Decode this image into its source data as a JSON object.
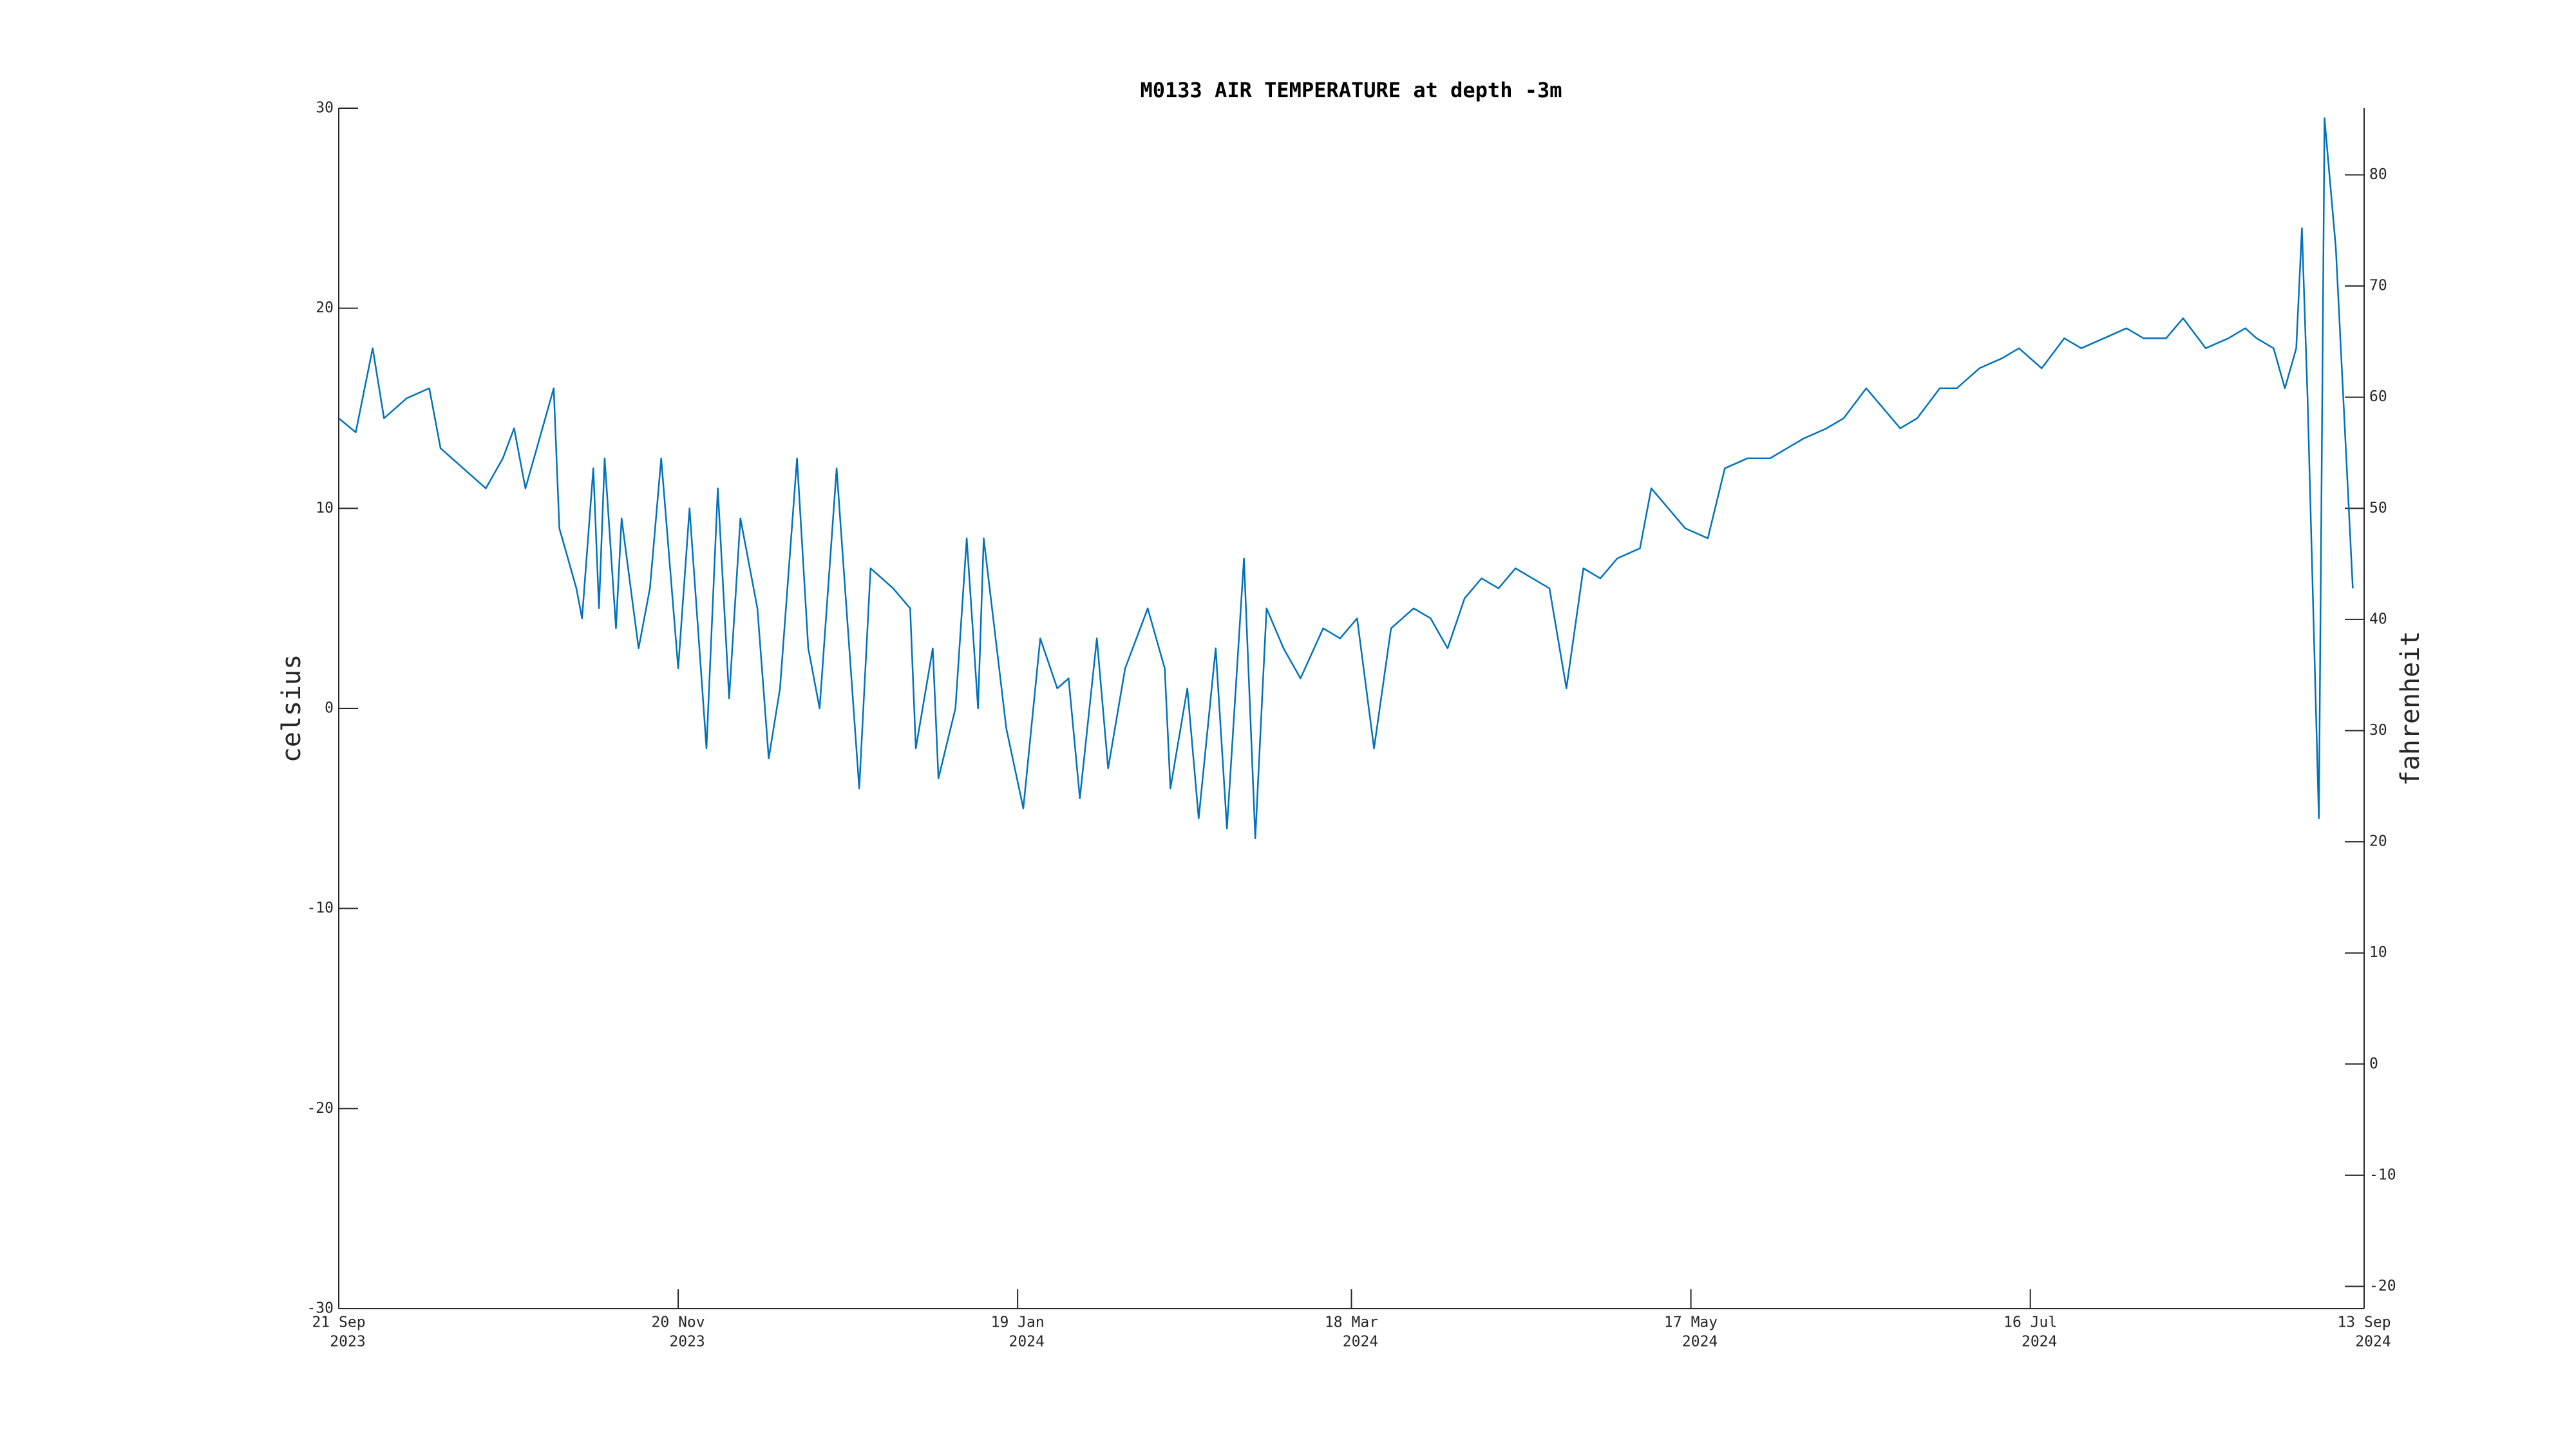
{
  "chart_data": {
    "type": "line",
    "title": "M0133 AIR TEMPERATURE at depth -3m",
    "ylabel": "celsius",
    "y2label": "fahrenheit",
    "color": "#0072bd",
    "x": [
      "2023-09-21",
      "2023-09-24",
      "2023-09-27",
      "2023-09-29",
      "2023-10-03",
      "2023-10-07",
      "2023-10-09",
      "2023-10-13",
      "2023-10-17",
      "2023-10-20",
      "2023-10-22",
      "2023-10-24",
      "2023-10-27",
      "2023-10-29",
      "2023-10-30",
      "2023-11-02",
      "2023-11-03",
      "2023-11-05",
      "2023-11-06",
      "2023-11-07",
      "2023-11-09",
      "2023-11-10",
      "2023-11-13",
      "2023-11-15",
      "2023-11-17",
      "2023-11-20",
      "2023-11-22",
      "2023-11-25",
      "2023-11-27",
      "2023-11-29",
      "2023-12-01",
      "2023-12-04",
      "2023-12-06",
      "2023-12-08",
      "2023-12-11",
      "2023-12-13",
      "2023-12-15",
      "2023-12-18",
      "2023-12-20",
      "2023-12-22",
      "2023-12-24",
      "2023-12-28",
      "2023-12-31",
      "2024-01-01",
      "2024-01-04",
      "2024-01-05",
      "2024-01-08",
      "2024-01-10",
      "2024-01-12",
      "2024-01-13",
      "2024-01-17",
      "2024-01-20",
      "2024-01-23",
      "2024-01-26",
      "2024-01-28",
      "2024-01-30",
      "2024-02-02",
      "2024-02-04",
      "2024-02-07",
      "2024-02-11",
      "2024-02-14",
      "2024-02-15",
      "2024-02-18",
      "2024-02-20",
      "2024-02-23",
      "2024-02-25",
      "2024-02-28",
      "2024-03-01",
      "2024-03-03",
      "2024-03-06",
      "2024-03-09",
      "2024-03-13",
      "2024-03-16",
      "2024-03-19",
      "2024-03-22",
      "2024-03-25",
      "2024-03-29",
      "2024-04-01",
      "2024-04-04",
      "2024-04-07",
      "2024-04-10",
      "2024-04-13",
      "2024-04-16",
      "2024-04-19",
      "2024-04-22",
      "2024-04-25",
      "2024-04-28",
      "2024-05-01",
      "2024-05-04",
      "2024-05-08",
      "2024-05-10",
      "2024-05-13",
      "2024-05-16",
      "2024-05-20",
      "2024-05-23",
      "2024-05-27",
      "2024-05-31",
      "2024-06-03",
      "2024-06-06",
      "2024-06-10",
      "2024-06-13",
      "2024-06-17",
      "2024-06-20",
      "2024-06-23",
      "2024-06-26",
      "2024-06-30",
      "2024-07-03",
      "2024-07-07",
      "2024-07-11",
      "2024-07-14",
      "2024-07-18",
      "2024-07-22",
      "2024-07-25",
      "2024-07-29",
      "2024-08-02",
      "2024-08-05",
      "2024-08-09",
      "2024-08-12",
      "2024-08-16",
      "2024-08-20",
      "2024-08-23",
      "2024-08-25",
      "2024-08-28",
      "2024-08-30",
      "2024-09-01",
      "2024-09-02",
      "2024-09-03",
      "2024-09-05",
      "2024-09-06",
      "2024-09-08",
      "2024-09-11"
    ],
    "values": [
      14.5,
      13.8,
      18,
      14.5,
      15.5,
      16,
      13,
      12,
      11,
      12.5,
      14,
      11,
      14,
      16,
      9,
      6,
      4.5,
      12,
      5,
      12.5,
      4,
      9.5,
      3,
      6,
      12.5,
      2,
      10,
      -2,
      11,
      0.5,
      9.5,
      5,
      -2.5,
      1,
      12.5,
      3,
      0,
      12,
      4,
      -4,
      7,
      6,
      5,
      -2,
      3,
      -3.5,
      0,
      8.5,
      0,
      8.5,
      -1,
      -5,
      3.5,
      1,
      1.5,
      -4.5,
      3.5,
      -3,
      2,
      5,
      2,
      -4,
      1,
      -5.5,
      3,
      -6,
      7.5,
      -6.5,
      5,
      3,
      1.5,
      4,
      3.5,
      4.5,
      -2,
      4,
      5,
      4.5,
      3,
      5.5,
      6.5,
      6,
      7,
      6.5,
      6,
      1,
      7,
      6.5,
      7.5,
      8,
      11,
      10,
      9,
      8.5,
      12,
      12.5,
      12.5,
      13,
      13.5,
      14,
      14.5,
      16,
      15,
      14,
      14.5,
      16,
      16,
      17,
      17.5,
      18,
      17,
      18.5,
      18,
      18.5,
      19,
      18.5,
      18.5,
      19.5,
      18,
      18.5,
      19,
      18.5,
      18,
      16,
      18,
      24,
      15.5,
      -5.5,
      29.5,
      23,
      6
    ],
    "xlim": [
      "2023-09-21",
      "2024-09-13"
    ],
    "xticks": [
      {
        "value": "2023-09-21",
        "label": [
          "21 Sep",
          "2023"
        ]
      },
      {
        "value": "2023-11-20",
        "label": [
          "20 Nov",
          "2023"
        ]
      },
      {
        "value": "2024-01-19",
        "label": [
          "19 Jan",
          "2024"
        ]
      },
      {
        "value": "2024-03-18",
        "label": [
          "18 Mar",
          "2024"
        ]
      },
      {
        "value": "2024-05-17",
        "label": [
          "17 May",
          "2024"
        ]
      },
      {
        "value": "2024-07-16",
        "label": [
          "16 Jul",
          "2024"
        ]
      },
      {
        "value": "2024-09-13",
        "label": [
          "13 Sep",
          "2024"
        ]
      }
    ],
    "ylim": [
      -30,
      30
    ],
    "yticks": [
      -30,
      -20,
      -10,
      0,
      10,
      20,
      30
    ],
    "y2lim": [
      -22,
      86
    ],
    "y2ticks": [
      -20,
      -10,
      0,
      10,
      20,
      30,
      40,
      50,
      60,
      70,
      80
    ]
  }
}
